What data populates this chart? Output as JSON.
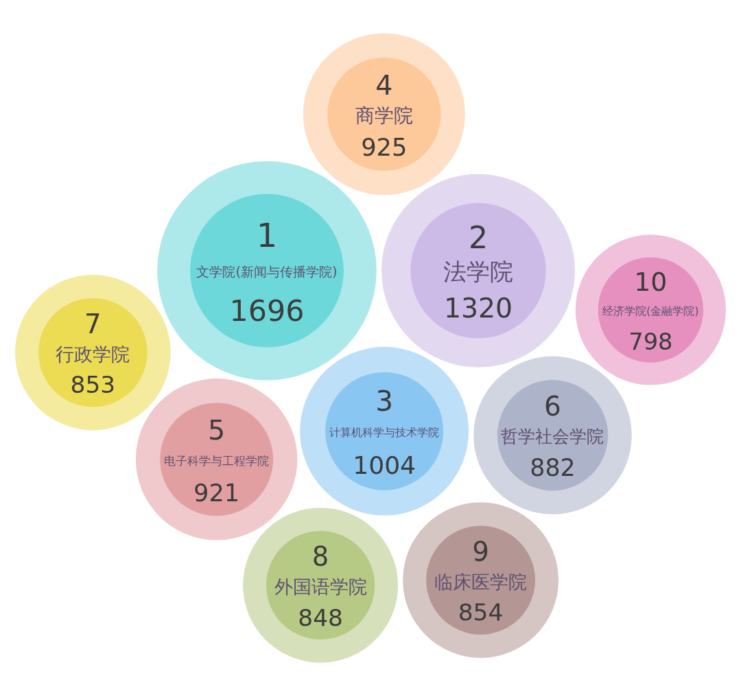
{
  "chart_data": {
    "type": "other",
    "categories": [
      "文学院(新闻与传播学院)",
      "法学院",
      "计算机科学与技术学院",
      "商学院",
      "电子科学与工程学院",
      "哲学社会学院",
      "行政学院",
      "外国语学院",
      "临床医学院",
      "经济学院(金融学院)"
    ],
    "values": [
      1696,
      1320,
      1004,
      925,
      921,
      882,
      853,
      848,
      854,
      798
    ],
    "colors": [
      "#6cd8d9",
      "#cbbbe6",
      "#8ac6f2",
      "#fdc89a",
      "#e29fa2",
      "#adb3c9",
      "#ecdc54",
      "#b6c985",
      "#b49794",
      "#e690c0"
    ],
    "data_labels": true,
    "annotations": [
      "1",
      "2",
      "3",
      "4",
      "5",
      "6",
      "7",
      "8",
      "9",
      "10"
    ]
  }
}
